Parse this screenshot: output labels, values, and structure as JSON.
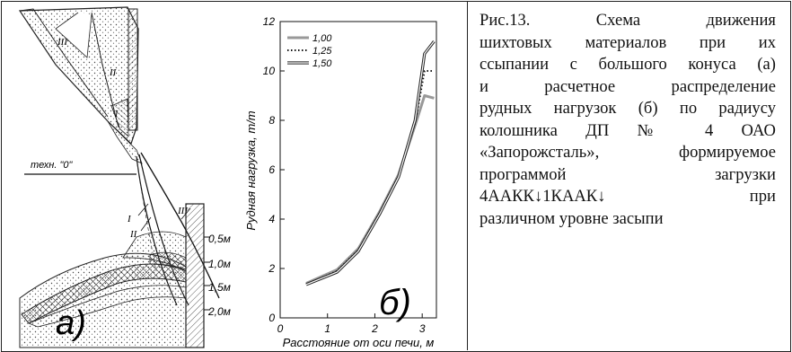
{
  "caption": {
    "lines": [
      "Рис.13.    Схема    движения",
      "шихтовых материалов при их",
      "ссыпании с большого конуса (а)",
      "и    расчетное    распределение",
      "рудных нагрузок (б) по радиусу",
      "колошника       ДП № 4       ОАО",
      "«Запорожсталь»,  формируемое",
      "программой                загрузки",
      "4ААКК↓1КААК↓                при",
      "различном уровне засыпи"
    ]
  },
  "scheme": {
    "panel_label": "а)",
    "tech_zero_label": "техн. \"0\"",
    "zone_labels": [
      "III",
      "II",
      "I"
    ],
    "stream_labels": [
      "III",
      "I",
      "II"
    ],
    "level_labels": [
      "0,5м",
      "1,0м",
      "1,5м",
      "2,0м"
    ]
  },
  "chart_data": {
    "type": "line",
    "panel_label": "б)",
    "xlabel": "Расстояние от оси печи, м",
    "ylabel": "Рудная нагрузка, т/т",
    "xlim": [
      0,
      3.3
    ],
    "ylim": [
      0,
      12
    ],
    "x_ticks": [
      "0",
      "1",
      "2",
      "3"
    ],
    "y_ticks": [
      "0",
      "2",
      "4",
      "6",
      "8",
      "10",
      "12"
    ],
    "legend_position": "top-left",
    "series": [
      {
        "name": "1,00",
        "style": "solid-gray",
        "x": [
          0.55,
          1.2,
          1.65,
          2.1,
          2.5,
          2.85,
          3.05,
          3.25
        ],
        "y": [
          1.4,
          1.95,
          2.8,
          4.3,
          5.8,
          7.8,
          9.0,
          8.9
        ]
      },
      {
        "name": "1,25",
        "style": "dotted",
        "x": [
          0.55,
          1.2,
          1.65,
          2.1,
          2.5,
          2.85,
          3.05,
          3.25
        ],
        "y": [
          1.35,
          1.9,
          2.75,
          4.25,
          5.75,
          7.9,
          10.0,
          10.0
        ]
      },
      {
        "name": "1,50",
        "style": "double",
        "x": [
          0.55,
          1.2,
          1.65,
          2.1,
          2.5,
          2.85,
          3.05,
          3.25
        ],
        "y": [
          1.35,
          1.85,
          2.7,
          4.2,
          5.7,
          8.0,
          10.7,
          11.2
        ]
      }
    ]
  }
}
